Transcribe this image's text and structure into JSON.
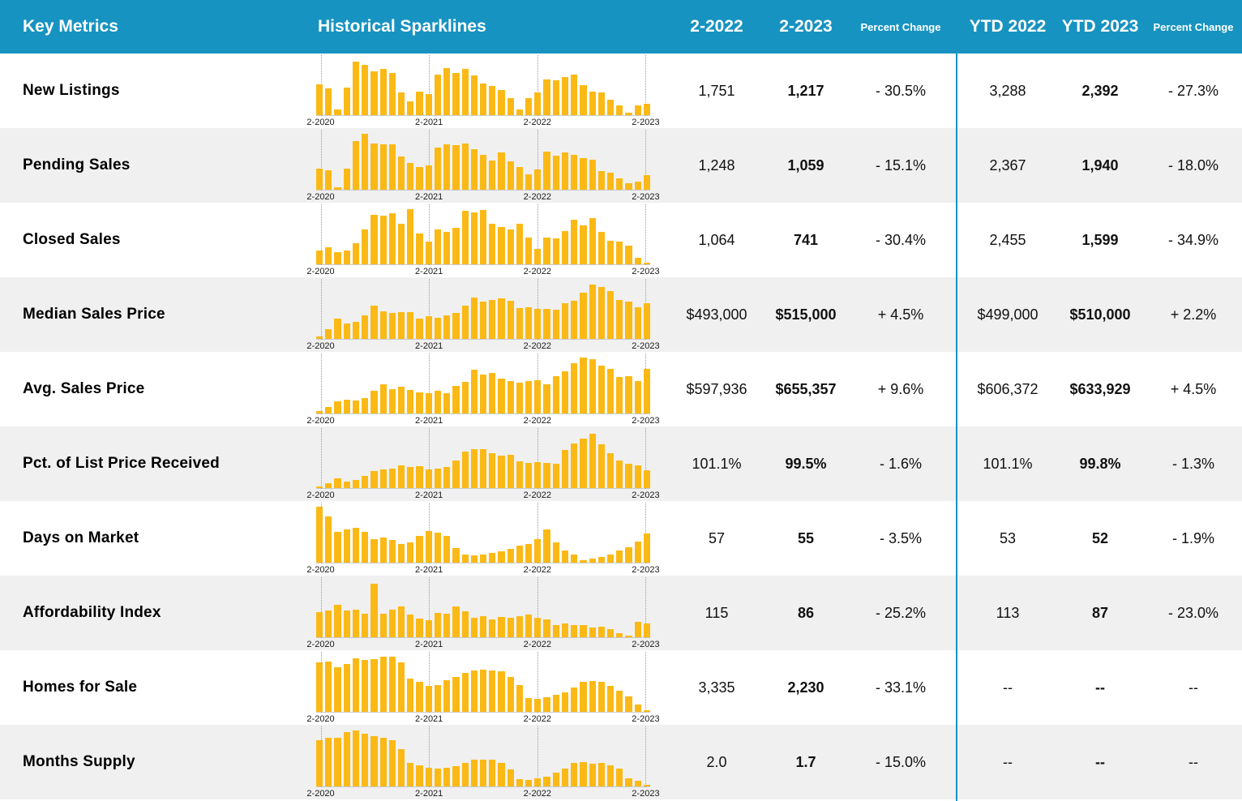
{
  "header": {
    "key_metrics": "Key Metrics",
    "sparklines": "Historical Sparklines",
    "month_prev": "2-2022",
    "month_curr": "2-2023",
    "pct_change": "Percent Change",
    "ytd_prev": "YTD 2022",
    "ytd_curr": "YTD 2023",
    "ytd_pct_change": "Percent Change"
  },
  "colors": {
    "header_bg": "#1793C1",
    "bar": "#FBB916",
    "row_alt": "#F0F0F0",
    "divider": "#1793C1"
  },
  "spark_axis_labels": [
    "2-2020",
    "2-2021",
    "2-2022",
    "2-2023"
  ],
  "rows": [
    {
      "metric": "New Listings",
      "m_prev": "1,751",
      "m_curr": "1,217",
      "m_pct": "- 30.5%",
      "ytd_prev": "3,288",
      "ytd_curr": "2,392",
      "ytd_pct": "- 27.3%",
      "spark": [
        0.55,
        0.48,
        0.1,
        0.5,
        0.95,
        0.9,
        0.79,
        0.82,
        0.75,
        0.4,
        0.25,
        0.42,
        0.38,
        0.72,
        0.84,
        0.76,
        0.82,
        0.71,
        0.57,
        0.52,
        0.45,
        0.3,
        0.1,
        0.3,
        0.4,
        0.64,
        0.62,
        0.68,
        0.72,
        0.54,
        0.42,
        0.41,
        0.28,
        0.18,
        0.04,
        0.18,
        0.2
      ]
    },
    {
      "metric": "Pending Sales",
      "m_prev": "1,248",
      "m_curr": "1,059",
      "m_pct": "- 15.1%",
      "ytd_prev": "2,367",
      "ytd_curr": "1,940",
      "ytd_pct": "- 18.0%",
      "spark": [
        0.37,
        0.35,
        0.04,
        0.37,
        0.87,
        1.0,
        0.83,
        0.81,
        0.81,
        0.59,
        0.48,
        0.41,
        0.44,
        0.76,
        0.81,
        0.8,
        0.83,
        0.72,
        0.62,
        0.52,
        0.66,
        0.51,
        0.4,
        0.28,
        0.36,
        0.68,
        0.61,
        0.66,
        0.63,
        0.56,
        0.54,
        0.33,
        0.31,
        0.2,
        0.12,
        0.14,
        0.26
      ]
    },
    {
      "metric": "Closed Sales",
      "m_prev": "1,064",
      "m_curr": "741",
      "m_pct": "- 30.4%",
      "ytd_prev": "2,455",
      "ytd_curr": "1,599",
      "ytd_pct": "- 34.9%",
      "spark": [
        0.25,
        0.3,
        0.22,
        0.24,
        0.37,
        0.62,
        0.88,
        0.87,
        0.92,
        0.72,
        0.98,
        0.55,
        0.4,
        0.62,
        0.58,
        0.65,
        0.95,
        0.93,
        0.97,
        0.72,
        0.67,
        0.63,
        0.72,
        0.48,
        0.27,
        0.48,
        0.47,
        0.6,
        0.8,
        0.7,
        0.83,
        0.58,
        0.42,
        0.4,
        0.33,
        0.12,
        0.03
      ]
    },
    {
      "metric": "Median Sales Price",
      "m_prev": "$493,000",
      "m_curr": "$515,000",
      "m_pct": "+ 4.5%",
      "ytd_prev": "$499,000",
      "ytd_curr": "$510,000",
      "ytd_pct": "+ 2.2%",
      "spark": [
        0.04,
        0.18,
        0.36,
        0.28,
        0.31,
        0.42,
        0.6,
        0.5,
        0.47,
        0.48,
        0.48,
        0.36,
        0.4,
        0.37,
        0.42,
        0.47,
        0.6,
        0.74,
        0.67,
        0.7,
        0.73,
        0.68,
        0.55,
        0.57,
        0.54,
        0.54,
        0.52,
        0.64,
        0.68,
        0.82,
        0.97,
        0.93,
        0.86,
        0.7,
        0.66,
        0.56,
        0.64
      ]
    },
    {
      "metric": "Avg. Sales Price",
      "m_prev": "$597,936",
      "m_curr": "$655,357",
      "m_pct": "+ 9.6%",
      "ytd_prev": "$606,372",
      "ytd_curr": "$633,929",
      "ytd_pct": "+ 4.5%",
      "spark": [
        0.04,
        0.12,
        0.22,
        0.24,
        0.23,
        0.28,
        0.4,
        0.52,
        0.44,
        0.48,
        0.42,
        0.38,
        0.36,
        0.4,
        0.36,
        0.5,
        0.57,
        0.78,
        0.7,
        0.73,
        0.62,
        0.58,
        0.55,
        0.58,
        0.6,
        0.52,
        0.66,
        0.75,
        0.9,
        1.0,
        0.97,
        0.86,
        0.8,
        0.65,
        0.67,
        0.58,
        0.8
      ]
    },
    {
      "metric": "Pct. of List Price Received",
      "m_prev": "101.1%",
      "m_curr": "99.5%",
      "m_pct": "- 1.6%",
      "ytd_prev": "101.1%",
      "ytd_curr": "99.8%",
      "ytd_pct": "- 1.3%",
      "spark": [
        0.03,
        0.08,
        0.18,
        0.12,
        0.15,
        0.22,
        0.3,
        0.33,
        0.35,
        0.4,
        0.38,
        0.39,
        0.33,
        0.35,
        0.38,
        0.5,
        0.65,
        0.7,
        0.7,
        0.62,
        0.58,
        0.6,
        0.48,
        0.45,
        0.47,
        0.45,
        0.44,
        0.68,
        0.8,
        0.88,
        0.97,
        0.78,
        0.63,
        0.5,
        0.44,
        0.4,
        0.32
      ]
    },
    {
      "metric": "Days on Market",
      "m_prev": "57",
      "m_curr": "55",
      "m_pct": "- 3.5%",
      "ytd_prev": "53",
      "ytd_curr": "52",
      "ytd_pct": "- 1.9%",
      "spark": [
        1.0,
        0.82,
        0.55,
        0.6,
        0.63,
        0.55,
        0.42,
        0.45,
        0.4,
        0.33,
        0.36,
        0.48,
        0.56,
        0.54,
        0.48,
        0.26,
        0.15,
        0.13,
        0.15,
        0.17,
        0.2,
        0.25,
        0.3,
        0.33,
        0.42,
        0.6,
        0.36,
        0.22,
        0.14,
        0.05,
        0.07,
        0.1,
        0.14,
        0.22,
        0.28,
        0.38,
        0.52
      ]
    },
    {
      "metric": "Affordability Index",
      "m_prev": "115",
      "m_curr": "86",
      "m_pct": "- 25.2%",
      "ytd_prev": "113",
      "ytd_curr": "87",
      "ytd_pct": "- 23.0%",
      "spark": [
        0.45,
        0.48,
        0.58,
        0.48,
        0.5,
        0.42,
        0.95,
        0.42,
        0.5,
        0.55,
        0.4,
        0.33,
        0.31,
        0.44,
        0.42,
        0.55,
        0.47,
        0.35,
        0.38,
        0.32,
        0.36,
        0.35,
        0.38,
        0.4,
        0.35,
        0.32,
        0.22,
        0.24,
        0.22,
        0.22,
        0.18,
        0.19,
        0.14,
        0.07,
        0.03,
        0.28,
        0.24
      ]
    },
    {
      "metric": "Homes for Sale",
      "m_prev": "3,335",
      "m_curr": "2,230",
      "m_pct": "- 33.1%",
      "ytd_prev": "--",
      "ytd_curr": "--",
      "ytd_pct": "--",
      "spark": [
        0.88,
        0.9,
        0.8,
        0.85,
        0.95,
        0.93,
        0.94,
        0.98,
        0.98,
        0.88,
        0.6,
        0.53,
        0.47,
        0.48,
        0.57,
        0.63,
        0.7,
        0.74,
        0.76,
        0.74,
        0.72,
        0.62,
        0.48,
        0.25,
        0.23,
        0.26,
        0.3,
        0.35,
        0.44,
        0.53,
        0.55,
        0.53,
        0.46,
        0.38,
        0.28,
        0.13,
        0.03
      ]
    },
    {
      "metric": "Months Supply",
      "m_prev": "2.0",
      "m_curr": "1.7",
      "m_pct": "- 15.0%",
      "ytd_prev": "--",
      "ytd_curr": "--",
      "ytd_pct": "--",
      "spark": [
        0.82,
        0.87,
        0.87,
        0.97,
        1.0,
        0.94,
        0.9,
        0.87,
        0.82,
        0.66,
        0.42,
        0.37,
        0.33,
        0.32,
        0.34,
        0.36,
        0.42,
        0.48,
        0.48,
        0.48,
        0.42,
        0.3,
        0.13,
        0.12,
        0.14,
        0.18,
        0.24,
        0.32,
        0.42,
        0.44,
        0.4,
        0.42,
        0.38,
        0.32,
        0.15,
        0.1,
        0.03
      ]
    }
  ]
}
